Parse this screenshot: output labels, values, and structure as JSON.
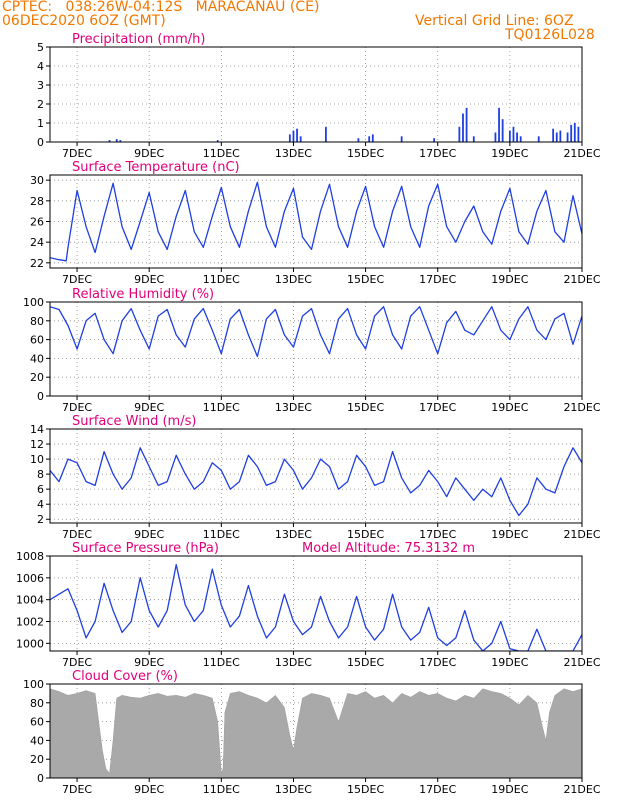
{
  "header": {
    "line1": "CPTEC:   038:26W-04:12S   MARACANAU (CE)",
    "line2": "06DEC2020 6OZ (GMT)",
    "grid_note": "Vertical Grid Line: 6OZ",
    "code": "TQ0126L028"
  },
  "colors": {
    "header": "#f07800",
    "title": "#e0007a",
    "series": "#1f3fe0",
    "cloud": "#a9a9a9",
    "axis": "#000000"
  },
  "x_axis": {
    "range_days": [
      6.25,
      21.0
    ],
    "tick_days": [
      7,
      9,
      11,
      13,
      15,
      17,
      19,
      21
    ],
    "tick_labels": [
      "7DEC",
      "9DEC",
      "11DEC",
      "13DEC",
      "15DEC",
      "17DEC",
      "19DEC",
      "21DEC"
    ]
  },
  "chart_data": [
    {
      "type": "bar",
      "title": "Precipitation (mm/h)",
      "ylim": [
        0,
        5
      ],
      "yticks": [
        0,
        1,
        2,
        3,
        4,
        5
      ],
      "bars": [
        [
          7.9,
          0.1
        ],
        [
          8.1,
          0.15
        ],
        [
          8.2,
          0.1
        ],
        [
          10.9,
          0.1
        ],
        [
          12.9,
          0.4
        ],
        [
          13.0,
          0.6
        ],
        [
          13.1,
          0.7
        ],
        [
          13.2,
          0.3
        ],
        [
          13.9,
          0.8
        ],
        [
          14.8,
          0.2
        ],
        [
          15.1,
          0.3
        ],
        [
          15.2,
          0.4
        ],
        [
          16.0,
          0.3
        ],
        [
          16.9,
          0.2
        ],
        [
          17.6,
          0.8
        ],
        [
          17.7,
          1.5
        ],
        [
          17.8,
          1.8
        ],
        [
          18.0,
          0.3
        ],
        [
          18.6,
          0.5
        ],
        [
          18.7,
          1.8
        ],
        [
          18.8,
          1.2
        ],
        [
          19.0,
          0.6
        ],
        [
          19.1,
          0.8
        ],
        [
          19.2,
          0.5
        ],
        [
          19.3,
          0.3
        ],
        [
          19.8,
          0.3
        ],
        [
          20.2,
          0.7
        ],
        [
          20.3,
          0.5
        ],
        [
          20.4,
          0.6
        ],
        [
          20.6,
          0.5
        ],
        [
          20.7,
          0.9
        ],
        [
          20.8,
          1.0
        ],
        [
          20.9,
          0.8
        ]
      ]
    },
    {
      "type": "line",
      "title": "Surface Temperature (nC)",
      "ylim": [
        21.5,
        30.5
      ],
      "yticks": [
        22,
        24,
        26,
        28,
        30
      ],
      "x": [
        6.25,
        6.5,
        6.7,
        6.75,
        7.0,
        7.25,
        7.5,
        7.75,
        8.0,
        8.25,
        8.5,
        8.75,
        9.0,
        9.25,
        9.5,
        9.75,
        10.0,
        10.25,
        10.5,
        10.75,
        11.0,
        11.25,
        11.5,
        11.75,
        12.0,
        12.25,
        12.5,
        12.75,
        13.0,
        13.25,
        13.5,
        13.75,
        14.0,
        14.25,
        14.5,
        14.75,
        15.0,
        15.25,
        15.5,
        15.75,
        16.0,
        16.25,
        16.5,
        16.75,
        17.0,
        17.25,
        17.5,
        17.75,
        18.0,
        18.25,
        18.5,
        18.75,
        19.0,
        19.25,
        19.5,
        19.75,
        20.0,
        20.25,
        20.5,
        20.75,
        21.0
      ],
      "values": [
        22.5,
        22.3,
        22.2,
        23.5,
        29.0,
        25.5,
        23.0,
        26.5,
        29.7,
        25.5,
        23.3,
        26.0,
        28.8,
        25.0,
        23.3,
        26.5,
        29.0,
        25.0,
        23.5,
        26.5,
        29.3,
        25.5,
        23.5,
        27.0,
        29.8,
        25.5,
        23.5,
        27.0,
        29.2,
        24.5,
        23.3,
        27.0,
        29.6,
        25.5,
        23.5,
        27.0,
        29.4,
        25.5,
        23.5,
        27.0,
        29.4,
        25.5,
        23.5,
        27.5,
        29.6,
        25.5,
        24.0,
        26.0,
        27.5,
        25.0,
        23.8,
        27.0,
        29.2,
        25.0,
        23.8,
        27.0,
        29.0,
        25.0,
        24.0,
        28.5,
        24.8
      ]
    },
    {
      "type": "line",
      "title": "Relative Humidity (%)",
      "ylim": [
        0,
        100
      ],
      "yticks": [
        0,
        20,
        40,
        60,
        80,
        100
      ],
      "x": [
        6.25,
        6.5,
        6.75,
        7.0,
        7.25,
        7.5,
        7.75,
        8.0,
        8.25,
        8.5,
        8.75,
        9.0,
        9.25,
        9.5,
        9.75,
        10.0,
        10.25,
        10.5,
        10.75,
        11.0,
        11.25,
        11.5,
        11.75,
        12.0,
        12.25,
        12.5,
        12.75,
        13.0,
        13.25,
        13.5,
        13.75,
        14.0,
        14.25,
        14.5,
        14.75,
        15.0,
        15.25,
        15.5,
        15.75,
        16.0,
        16.25,
        16.5,
        16.75,
        17.0,
        17.25,
        17.5,
        17.75,
        18.0,
        18.25,
        18.5,
        18.75,
        19.0,
        19.25,
        19.5,
        19.75,
        20.0,
        20.25,
        20.5,
        20.75,
        21.0
      ],
      "values": [
        95,
        92,
        75,
        50,
        80,
        88,
        60,
        45,
        80,
        93,
        70,
        50,
        85,
        92,
        65,
        52,
        82,
        93,
        70,
        45,
        82,
        92,
        65,
        42,
        82,
        92,
        65,
        52,
        85,
        93,
        65,
        45,
        82,
        93,
        65,
        50,
        85,
        95,
        65,
        50,
        85,
        95,
        70,
        45,
        78,
        90,
        70,
        65,
        80,
        95,
        70,
        60,
        82,
        95,
        70,
        60,
        82,
        88,
        55,
        85
      ]
    },
    {
      "type": "line",
      "title": "Surface Wind (m/s)",
      "ylim": [
        1.5,
        14
      ],
      "yticks": [
        2,
        4,
        6,
        8,
        10,
        12,
        14
      ],
      "x": [
        6.25,
        6.5,
        6.75,
        7.0,
        7.25,
        7.5,
        7.75,
        8.0,
        8.25,
        8.5,
        8.75,
        9.0,
        9.25,
        9.5,
        9.75,
        10.0,
        10.25,
        10.5,
        10.75,
        11.0,
        11.25,
        11.5,
        11.75,
        12.0,
        12.25,
        12.5,
        12.75,
        13.0,
        13.25,
        13.5,
        13.75,
        14.0,
        14.25,
        14.5,
        14.75,
        15.0,
        15.25,
        15.5,
        15.75,
        16.0,
        16.25,
        16.5,
        16.75,
        17.0,
        17.25,
        17.5,
        17.75,
        18.0,
        18.25,
        18.5,
        18.75,
        19.0,
        19.25,
        19.5,
        19.75,
        20.0,
        20.25,
        20.5,
        20.75,
        21.0
      ],
      "values": [
        8.5,
        7.0,
        10.0,
        9.5,
        7.0,
        6.5,
        11.0,
        8.0,
        6.0,
        7.5,
        11.5,
        9.0,
        6.5,
        7.0,
        10.5,
        8.0,
        6.0,
        7.0,
        9.5,
        8.5,
        6.0,
        7.0,
        10.5,
        9.0,
        6.5,
        7.0,
        10.0,
        8.5,
        6.0,
        7.5,
        10.0,
        9.0,
        6.0,
        7.0,
        10.5,
        9.0,
        6.5,
        7.0,
        11.0,
        7.5,
        5.5,
        6.5,
        8.5,
        7.0,
        5.0,
        7.5,
        6.0,
        4.5,
        6.0,
        5.0,
        7.5,
        4.5,
        2.5,
        4.0,
        7.5,
        6.0,
        5.5,
        9.0,
        11.5,
        9.5
      ]
    },
    {
      "type": "line",
      "title": "Surface Pressure (hPa)",
      "annotation": "Model Altitude: 75.3132 m",
      "ylim": [
        999.3,
        1008
      ],
      "yticks": [
        1000,
        1002,
        1004,
        1006,
        1008
      ],
      "x": [
        6.25,
        6.5,
        6.75,
        7.0,
        7.25,
        7.5,
        7.75,
        8.0,
        8.25,
        8.5,
        8.75,
        9.0,
        9.25,
        9.5,
        9.75,
        10.0,
        10.25,
        10.5,
        10.75,
        11.0,
        11.25,
        11.5,
        11.75,
        12.0,
        12.25,
        12.5,
        12.75,
        13.0,
        13.25,
        13.5,
        13.75,
        14.0,
        14.25,
        14.5,
        14.75,
        15.0,
        15.25,
        15.5,
        15.75,
        16.0,
        16.25,
        16.5,
        16.75,
        17.0,
        17.25,
        17.5,
        17.75,
        18.0,
        18.25,
        18.5,
        18.75,
        19.0,
        19.25,
        19.5,
        19.75,
        20.0,
        20.25,
        20.5,
        20.75,
        21.0
      ],
      "values": [
        1004.0,
        1004.5,
        1005.0,
        1003.0,
        1000.5,
        1002.0,
        1005.5,
        1003.0,
        1001.0,
        1002.0,
        1006.0,
        1003.0,
        1001.5,
        1003.0,
        1007.2,
        1003.5,
        1002.0,
        1003.0,
        1006.8,
        1003.5,
        1001.5,
        1002.5,
        1005.3,
        1002.5,
        1000.5,
        1001.5,
        1004.5,
        1002.0,
        1000.8,
        1001.5,
        1004.3,
        1002.0,
        1000.5,
        1001.5,
        1004.3,
        1001.5,
        1000.3,
        1001.3,
        1004.5,
        1001.5,
        1000.3,
        1001.0,
        1003.3,
        1000.5,
        999.8,
        1000.5,
        1003.0,
        1000.3,
        999.3,
        1000.0,
        1002.0,
        999.5,
        999.3,
        999.3,
        1001.3,
        999.3,
        999.3,
        999.3,
        999.3,
        1000.8
      ]
    },
    {
      "type": "area",
      "title": "Cloud Cover (%)",
      "ylim": [
        0,
        100
      ],
      "yticks": [
        0,
        20,
        40,
        60,
        80,
        100
      ],
      "x": [
        6.25,
        6.5,
        6.75,
        7.0,
        7.25,
        7.5,
        7.7,
        7.8,
        7.9,
        8.0,
        8.1,
        8.25,
        8.5,
        8.75,
        9.0,
        9.25,
        9.5,
        9.75,
        10.0,
        10.25,
        10.5,
        10.75,
        10.9,
        11.0,
        11.05,
        11.1,
        11.25,
        11.5,
        11.75,
        12.0,
        12.25,
        12.5,
        12.75,
        12.9,
        13.0,
        13.1,
        13.25,
        13.5,
        13.75,
        14.0,
        14.25,
        14.5,
        14.75,
        15.0,
        15.25,
        15.5,
        15.75,
        16.0,
        16.25,
        16.5,
        16.75,
        17.0,
        17.25,
        17.5,
        17.75,
        18.0,
        18.25,
        18.5,
        18.75,
        19.0,
        19.25,
        19.5,
        19.75,
        19.9,
        20.0,
        20.1,
        20.25,
        20.5,
        20.75,
        21.0
      ],
      "values": [
        95,
        92,
        88,
        90,
        93,
        90,
        30,
        10,
        5,
        40,
        85,
        88,
        86,
        85,
        88,
        90,
        87,
        88,
        86,
        90,
        88,
        85,
        60,
        5,
        10,
        70,
        90,
        92,
        88,
        85,
        80,
        88,
        75,
        45,
        30,
        55,
        85,
        90,
        88,
        85,
        60,
        90,
        88,
        92,
        85,
        88,
        80,
        90,
        86,
        92,
        88,
        90,
        85,
        82,
        88,
        85,
        95,
        92,
        90,
        85,
        78,
        88,
        80,
        55,
        40,
        70,
        88,
        95,
        92,
        95
      ]
    }
  ]
}
